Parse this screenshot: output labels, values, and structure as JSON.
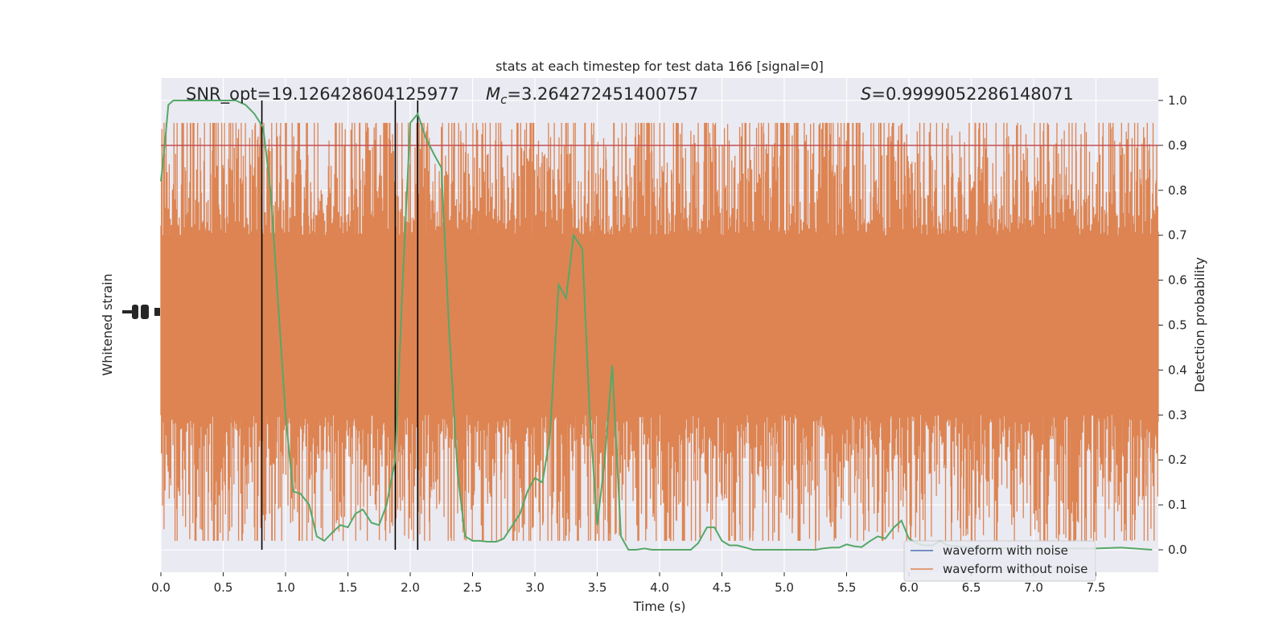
{
  "chart_data": {
    "type": "line",
    "title": "stats at each timestep for test data 166 [signal=0]",
    "xlabel": "Time (s)",
    "ylabel_left": "Whitened strain",
    "ylabel_right": "Detection probability",
    "xlim": [
      0.0,
      8.0
    ],
    "ylim_right": [
      -0.05,
      1.05
    ],
    "x_ticks": [
      "0.0",
      "0.5",
      "1.0",
      "1.5",
      "2.0",
      "2.5",
      "3.0",
      "3.5",
      "4.0",
      "4.5",
      "5.0",
      "5.5",
      "6.0",
      "6.5",
      "7.0",
      "7.5"
    ],
    "y_ticks_right": [
      "0.0",
      "0.1",
      "0.2",
      "0.3",
      "0.4",
      "0.5",
      "0.6",
      "0.7",
      "0.8",
      "0.9",
      "1.0"
    ],
    "grid": true,
    "legend_position": "lower-right",
    "stats": {
      "snr_text": "SNR_opt=19.126428604125977",
      "mc_label": "M",
      "mc_sub": "c",
      "mc_value": "=3.264272451400757",
      "s_label": "S",
      "s_value": "=0.9999052286148071"
    },
    "threshold": 0.9,
    "vertical_lines_x": [
      0.81,
      1.88,
      2.06
    ],
    "series": [
      {
        "name": "waveform with noise",
        "color": "#4c72b0",
        "values": []
      },
      {
        "name": "waveform without noise",
        "color": "#dd8452",
        "band": {
          "center": 0.5,
          "core_half_width": 0.2,
          "spike_max": 0.95,
          "spike_min": 0.0
        }
      },
      {
        "name": "detection probability",
        "color": "#55a868",
        "x": [
          0.0,
          0.03,
          0.06,
          0.1,
          0.15,
          0.2,
          0.3,
          0.4,
          0.5,
          0.6,
          0.68,
          0.75,
          0.82,
          0.88,
          0.94,
          1.0,
          1.06,
          1.12,
          1.19,
          1.25,
          1.31,
          1.38,
          1.44,
          1.5,
          1.56,
          1.62,
          1.69,
          1.75,
          1.81,
          1.88,
          1.94,
          2.0,
          2.06,
          2.12,
          2.19,
          2.25,
          2.31,
          2.38,
          2.44,
          2.5,
          2.56,
          2.62,
          2.69,
          2.75,
          2.81,
          2.88,
          2.94,
          3.0,
          3.06,
          3.12,
          3.19,
          3.25,
          3.31,
          3.38,
          3.44,
          3.5,
          3.56,
          3.62,
          3.69,
          3.75,
          3.81,
          3.88,
          3.94,
          4.0,
          4.06,
          4.12,
          4.19,
          4.25,
          4.31,
          4.38,
          4.44,
          4.5,
          4.56,
          4.62,
          4.69,
          4.75,
          4.81,
          4.88,
          4.94,
          5.0,
          5.06,
          5.12,
          5.19,
          5.25,
          5.31,
          5.38,
          5.44,
          5.5,
          5.56,
          5.62,
          5.69,
          5.75,
          5.81,
          5.88,
          5.94,
          6.0,
          6.06,
          6.12,
          6.19,
          6.25,
          6.31,
          6.5,
          7.0,
          7.5,
          7.7,
          7.95
        ],
        "values": [
          0.82,
          0.9,
          0.99,
          1.0,
          1.0,
          1.0,
          1.0,
          1.0,
          1.0,
          1.0,
          0.99,
          0.97,
          0.94,
          0.8,
          0.55,
          0.3,
          0.13,
          0.125,
          0.1,
          0.03,
          0.02,
          0.04,
          0.055,
          0.05,
          0.08,
          0.09,
          0.06,
          0.055,
          0.1,
          0.2,
          0.6,
          0.95,
          0.97,
          0.92,
          0.88,
          0.85,
          0.5,
          0.17,
          0.03,
          0.02,
          0.02,
          0.018,
          0.018,
          0.025,
          0.05,
          0.08,
          0.13,
          0.16,
          0.15,
          0.25,
          0.59,
          0.56,
          0.7,
          0.67,
          0.3,
          0.055,
          0.2,
          0.41,
          0.03,
          0.0,
          0.0,
          0.003,
          0.0,
          0.0,
          0.0,
          0.0,
          0.0,
          0.0,
          0.015,
          0.05,
          0.05,
          0.02,
          0.01,
          0.01,
          0.005,
          0.0,
          0.0,
          0.0,
          0.0,
          0.0,
          0.0,
          0.0,
          0.0,
          0.0,
          0.003,
          0.005,
          0.005,
          0.012,
          0.008,
          0.006,
          0.02,
          0.03,
          0.025,
          0.05,
          0.065,
          0.025,
          0.015,
          0.01,
          0.01,
          0.02,
          0.01,
          0.005,
          0.003,
          0.003,
          0.005,
          0.0
        ]
      }
    ]
  }
}
